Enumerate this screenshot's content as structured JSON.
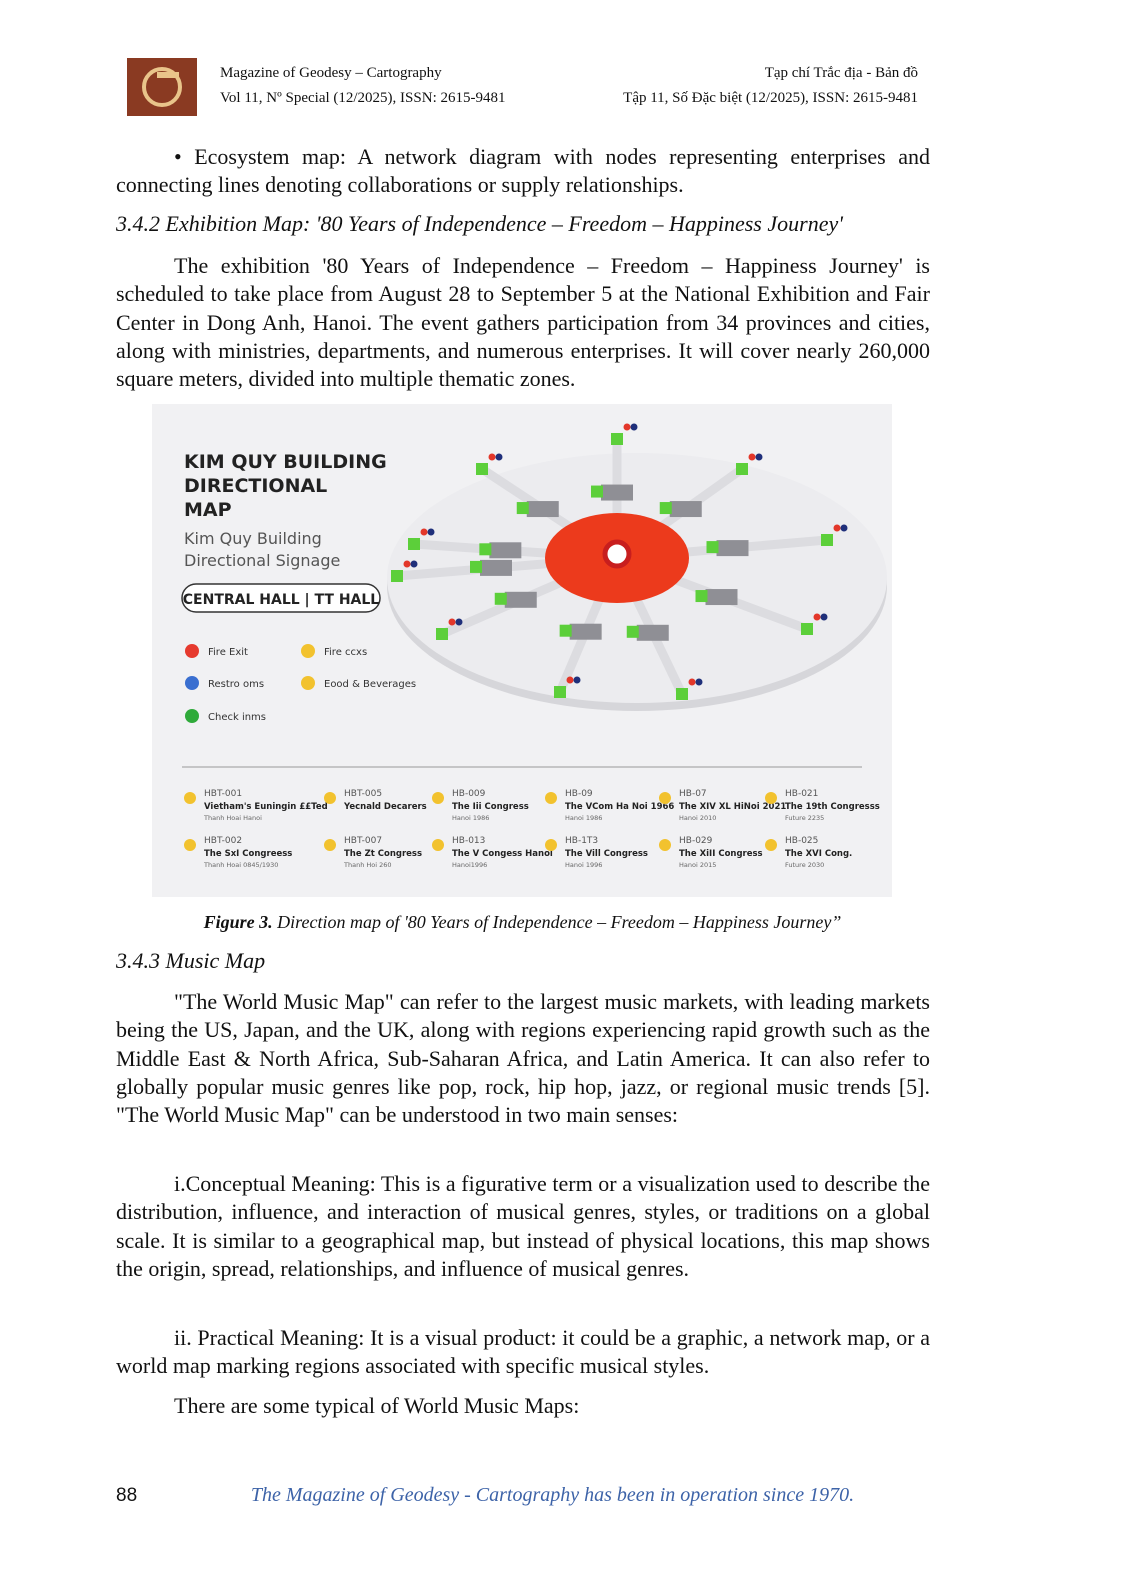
{
  "header": {
    "journal_en": "Magazine of Geodesy – Cartography",
    "volume_en": "Vol 11, Nº Special (12/2025), ISSN: 2615-9481",
    "journal_vi": "Tạp chí Trắc địa - Bản đồ",
    "volume_vi": "Tập 11, Số Đặc biệt (12/2025), ISSN: 2615-9481"
  },
  "bullet": "• Ecosystem map: A network diagram with nodes representing enterprises and connecting lines denoting collaborations or supply relationships.",
  "section_342": "3.4.2 Exhibition Map: '80 Years of Independence – Freedom – Happiness Journey'",
  "para_342": "The exhibition '80 Years of Independence – Freedom – Happiness Journey' is scheduled to take place from August 28 to September 5 at the National Exhibition and Fair Center in Dong Anh, Hanoi. The event gathers participation from 34 provinces and cities, along with ministries, departments, and numerous enterprises. It will cover nearly 260,000 square meters, divided into multiple thematic zones.",
  "figure": {
    "title_lines": [
      "KIM QUY BUILDING",
      "DIRECTIONAL",
      "MAP"
    ],
    "subtitle_lines": [
      "Kim Quy Building",
      "Directional Signage"
    ],
    "hall": "CENTRAL HALL | TT HALL",
    "legend": [
      "Fire Exit",
      "Fire ccxs",
      "Restro oms",
      "Eood & Beverages",
      "Check inms"
    ],
    "items": [
      {
        "code": "HBT-001",
        "name": "Vietham's Euningin ££Ted",
        "sub": "Thanh Hoai Hanoi"
      },
      {
        "code": "HBT-005",
        "name": "Yecnald Decarers"
      },
      {
        "code": "HB-009",
        "name": "The Iii Congress",
        "sub": "Hanoi 1986"
      },
      {
        "code": "HB-09",
        "name": "The VCom Ha Noi 1966",
        "sub": "Hanoi 1986"
      },
      {
        "code": "HB-07",
        "name": "The XIV XL HiNoi 2021",
        "sub": "Hanoi 2010"
      },
      {
        "code": "HB-021",
        "name": "The 19th Congresss",
        "sub": "Future 2235"
      },
      {
        "code": "HBT-002",
        "name": "The SxI Congreess",
        "sub": "Thanh Hoai 0845/1930"
      },
      {
        "code": "HBT-007",
        "name": "The Zt Congress",
        "sub": "Thanh Hoi 260"
      },
      {
        "code": "HB-013",
        "name": "The V Congess Hanol",
        "sub": "Hanoi1996"
      },
      {
        "code": "HB-1T3",
        "name": "The Vill Congress",
        "sub": "Hanoi 1996"
      },
      {
        "code": "HB-029",
        "name": "The XiII Congress",
        "sub": "Hanoi 2015"
      },
      {
        "code": "HB-025",
        "name": "The XVI Cong.",
        "sub": "Future 2030"
      }
    ]
  },
  "caption": {
    "label": "Figure 3.",
    "text": "Direction map of '80 Years of Independence – Freedom – Happiness Journey”"
  },
  "section_343": "3.4.3 Music Map",
  "paragraphs": [
    "\"The World Music Map\" can refer to the largest music markets, with leading markets being the US, Japan, and the UK, along with regions experiencing rapid growth such as the Middle East & North Africa, Sub-Saharan Africa, and Latin America. It can also refer to globally popular music genres like pop, rock, hip hop, jazz, or regional music trends [5]. \"The World Music Map\" can be understood in two main senses:",
    "i.Conceptual Meaning: This is a figurative term or a visualization used to describe the distribution, influence, and interaction of musical genres, styles, or traditions on a global scale. It is similar to a geographical map, but instead of physical locations, this map shows the origin, spread, relationships, and influence of musical genres.",
    "ii. Practical Meaning: It is a visual product: it could be a graphic, a network map, or a world map marking regions associated with specific musical styles.",
    "There are some typical of World Music Maps:"
  ],
  "footer": {
    "page": "88",
    "text": "The Magazine of Geodesy - Cartography has been in operation since 1970."
  }
}
